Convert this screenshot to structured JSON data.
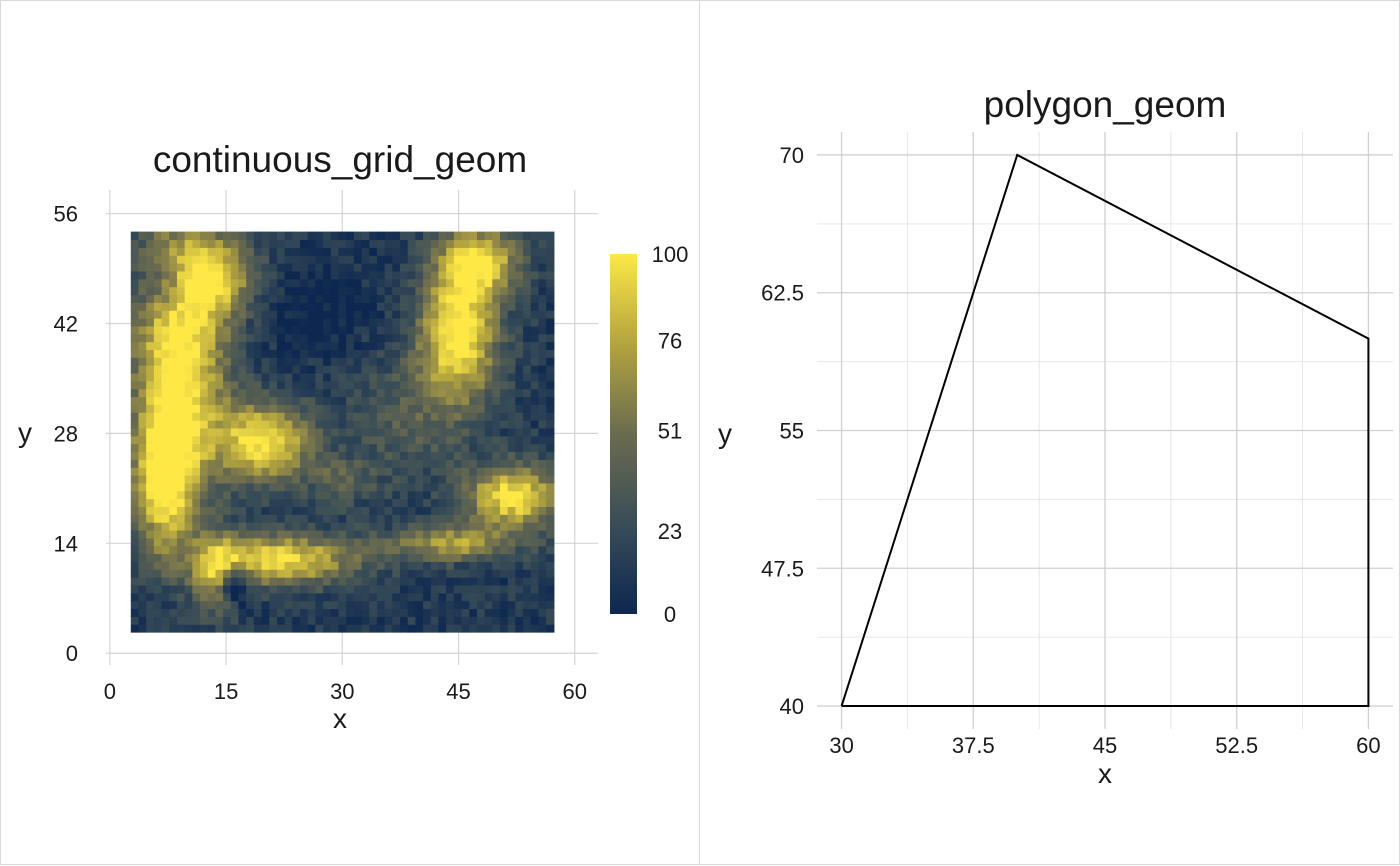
{
  "chart_data": [
    {
      "type": "heatmap",
      "title": "continuous_grid_geom",
      "xlabel": "x",
      "ylabel": "y",
      "xlim": [
        -0.5,
        63
      ],
      "ylim": [
        -1.5,
        59
      ],
      "x_ticks": [
        0,
        15,
        30,
        45,
        60
      ],
      "y_ticks": [
        0,
        14,
        28,
        42,
        56
      ],
      "grid": true,
      "grid_extent": {
        "x": [
          2.7,
          57.3
        ],
        "y": [
          2.7,
          53.7
        ]
      },
      "colorbar": {
        "min": 0,
        "max": 100,
        "ticks": [
          0,
          23,
          51,
          76,
          100
        ],
        "colors": [
          "#0d2750",
          "#394d57",
          "#6b6b4f",
          "#b3a43f",
          "#fde846"
        ],
        "placement": "right"
      },
      "values_description": "ignored"
    },
    {
      "type": "line",
      "title": "polygon_geom",
      "xlabel": "x",
      "ylabel": "y",
      "xlim": [
        28.6,
        61.4
      ],
      "ylim": [
        38.75,
        71.25
      ],
      "x_ticks": [
        30,
        37.5,
        45,
        52.5,
        60
      ],
      "x_tick_labels": [
        "30",
        "37.5",
        "45",
        "52.5",
        "60"
      ],
      "y_ticks": [
        40,
        47.5,
        55,
        62.5,
        70
      ],
      "y_tick_labels": [
        "40",
        "47.5",
        "55",
        "62.5",
        "70"
      ],
      "grid": true,
      "series": [
        {
          "x": [
            30,
            40,
            60,
            60,
            30
          ],
          "y": [
            40,
            70,
            60,
            40,
            40
          ]
        }
      ]
    }
  ]
}
